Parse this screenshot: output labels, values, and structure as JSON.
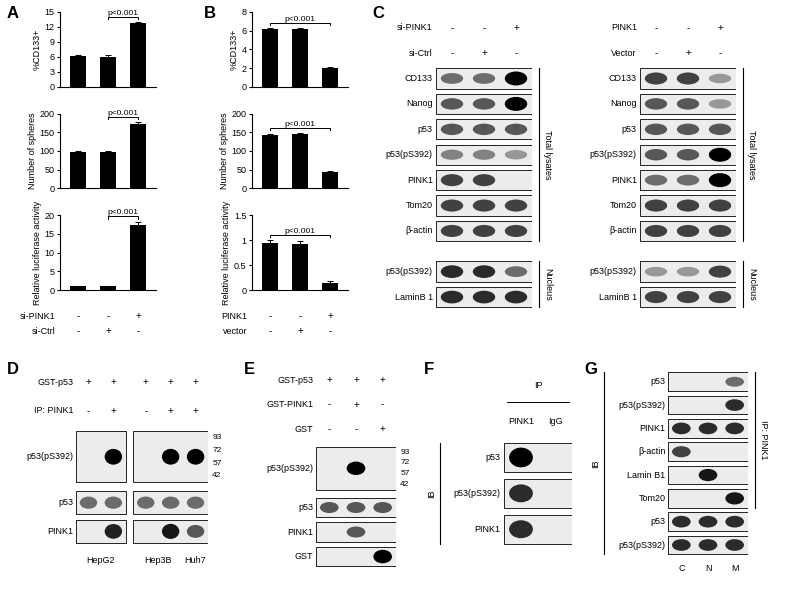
{
  "chart_data": [
    {
      "panel": "A",
      "type": "bar",
      "ylabel": "%CD133+",
      "categories": [
        null,
        null,
        null
      ],
      "values": [
        6.2,
        6.0,
        12.7
      ],
      "errors": [
        0.2,
        0.3,
        0.3
      ],
      "color": "#000000",
      "ylim": [
        0,
        15
      ],
      "yticks": [
        0,
        3,
        6,
        9,
        12,
        15
      ],
      "grid": false,
      "annotations": [
        {
          "text": "p<0.001",
          "bars": [
            1,
            2
          ]
        }
      ]
    },
    {
      "panel": "A",
      "type": "bar",
      "ylabel": "Number of spheres",
      "categories": [
        null,
        null,
        null
      ],
      "values": [
        97,
        98,
        173
      ],
      "errors": [
        3,
        3,
        5
      ],
      "color": "#000000",
      "ylim": [
        0,
        200
      ],
      "yticks": [
        0,
        50,
        100,
        150,
        200
      ],
      "grid": false,
      "annotations": [
        {
          "text": "p<0.001",
          "bars": [
            1,
            2
          ]
        }
      ]
    },
    {
      "panel": "A",
      "type": "bar",
      "ylabel": "Relative luciferase activity",
      "categories": [
        null,
        null,
        null
      ],
      "values": [
        1.0,
        1.0,
        17.5
      ],
      "errors": [
        0.1,
        0.1,
        0.8
      ],
      "color": "#000000",
      "ylim": [
        0,
        20
      ],
      "yticks": [
        0,
        5,
        10,
        15,
        20
      ],
      "grid": false,
      "annotations": [
        {
          "text": "p<0.001",
          "bars": [
            1,
            2
          ]
        }
      ],
      "conditions": [
        {
          "label": "si-PINK1",
          "marks": [
            "-",
            "-",
            "+"
          ]
        },
        {
          "label": "si-Ctrl",
          "marks": [
            "-",
            "+",
            "-"
          ]
        }
      ]
    },
    {
      "panel": "B",
      "type": "bar",
      "ylabel": "%CD133+",
      "categories": [
        null,
        null,
        null
      ],
      "values": [
        6.2,
        6.2,
        2.0
      ],
      "errors": [
        0.1,
        0.1,
        0.1
      ],
      "color": "#000000",
      "ylim": [
        0,
        8
      ],
      "yticks": [
        0,
        2,
        4,
        6,
        8
      ],
      "grid": false,
      "annotations": [
        {
          "text": "p<0.001",
          "bars": [
            0,
            2
          ]
        }
      ]
    },
    {
      "panel": "B",
      "type": "bar",
      "ylabel": "Number of spheres",
      "categories": [
        null,
        null,
        null
      ],
      "values": [
        142,
        145,
        43
      ],
      "errors": [
        3,
        3,
        4
      ],
      "color": "#000000",
      "ylim": [
        0,
        200
      ],
      "yticks": [
        0,
        50,
        100,
        150,
        200
      ],
      "grid": false,
      "annotations": [
        {
          "text": "p<0.001",
          "bars": [
            0,
            2
          ]
        }
      ]
    },
    {
      "panel": "B",
      "type": "bar",
      "ylabel": "Relative luciferase activity",
      "categories": [
        null,
        null,
        null
      ],
      "values": [
        0.95,
        0.93,
        0.15
      ],
      "errors": [
        0.05,
        0.05,
        0.03
      ],
      "color": "#000000",
      "ylim": [
        0,
        1.5
      ],
      "yticks": [
        0,
        0.5,
        1,
        1.5
      ],
      "grid": false,
      "annotations": [
        {
          "text": "p<0.001",
          "bars": [
            0,
            2
          ]
        }
      ],
      "conditions": [
        {
          "label": "PINK1",
          "marks": [
            "-",
            "-",
            "+"
          ]
        },
        {
          "label": "vector",
          "marks": [
            "-",
            "+",
            "-"
          ]
        }
      ]
    }
  ],
  "blots": [
    {
      "panel": "C",
      "headers": [
        {
          "label": "si-PINK1",
          "marks": [
            "-",
            "-",
            "+"
          ]
        },
        {
          "label": "si-Ctrl",
          "marks": [
            "-",
            "+",
            "-"
          ]
        }
      ],
      "rows": [
        {
          "label": "CD133",
          "intensity": [
            0.5,
            0.5,
            1.0
          ]
        },
        {
          "label": "Nanog",
          "intensity": [
            0.6,
            0.6,
            1.0
          ]
        },
        {
          "label": "p53",
          "intensity": [
            0.6,
            0.6,
            0.6
          ]
        },
        {
          "label": "p53(pS392)",
          "intensity": [
            0.4,
            0.4,
            0.3
          ]
        },
        {
          "label": "PINK1",
          "intensity": [
            0.7,
            0.7,
            0
          ]
        },
        {
          "label": "Tom20",
          "intensity": [
            0.7,
            0.7,
            0.7
          ]
        },
        {
          "label": "β-actin",
          "intensity": [
            0.7,
            0.7,
            0.7
          ]
        },
        {
          "label": "p53(pS392)",
          "intensity": [
            0.8,
            0.8,
            0.5
          ]
        },
        {
          "label": "LaminB 1",
          "intensity": [
            0.8,
            0.8,
            0.8
          ]
        }
      ],
      "brackets": [
        {
          "label": "Total lysates",
          "rows": [
            0,
            6
          ]
        },
        {
          "label": "Nucleus",
          "rows": [
            7,
            8
          ]
        }
      ]
    },
    {
      "panel": "C",
      "headers": [
        {
          "label": "PINK1",
          "marks": [
            "-",
            "-",
            "+"
          ]
        },
        {
          "label": "Vector",
          "marks": [
            "-",
            "+",
            "-"
          ]
        }
      ],
      "rows": [
        {
          "label": "CD133",
          "intensity": [
            0.7,
            0.7,
            0.3
          ]
        },
        {
          "label": "Nanog",
          "intensity": [
            0.6,
            0.6,
            0.3
          ]
        },
        {
          "label": "p53",
          "intensity": [
            0.6,
            0.6,
            0.6
          ]
        },
        {
          "label": "p53(pS392)",
          "intensity": [
            0.6,
            0.6,
            1.0
          ]
        },
        {
          "label": "PINK1",
          "intensity": [
            0.5,
            0.5,
            1.0
          ]
        },
        {
          "label": "Tom20",
          "intensity": [
            0.7,
            0.7,
            0.7
          ]
        },
        {
          "label": "β-actin",
          "intensity": [
            0.7,
            0.7,
            0.7
          ]
        },
        {
          "label": "p53(pS392)",
          "intensity": [
            0.3,
            0.3,
            0.7
          ]
        },
        {
          "label": "LaminB 1",
          "intensity": [
            0.7,
            0.7,
            0.7
          ]
        }
      ],
      "brackets": [
        {
          "label": "Total lysates",
          "rows": [
            0,
            6
          ]
        },
        {
          "label": "Nucleus",
          "rows": [
            7,
            8
          ]
        }
      ]
    },
    {
      "panel": "D",
      "headers": [
        {
          "label": "GST-p53",
          "marks": [
            "+",
            "+",
            "+",
            "+",
            "+"
          ]
        },
        {
          "label": "IP: PINK1",
          "marks": [
            "-",
            "+",
            "-",
            "+",
            "+"
          ]
        }
      ],
      "rows": [
        {
          "label": "p53(pS392)",
          "intensity": [
            0,
            1.0,
            0,
            1.0,
            1.0
          ]
        },
        {
          "label": "p53",
          "intensity": [
            0.5,
            0.5,
            0.5,
            0.5,
            0.5
          ]
        },
        {
          "label": "PINK1",
          "intensity": [
            0,
            0.85,
            0,
            0.9,
            0.6
          ]
        }
      ],
      "markers": [
        93,
        72,
        57,
        42
      ],
      "lane_groups": [
        {
          "label": "HepG2",
          "lanes": [
            0,
            1
          ]
        },
        {
          "label": "Hep3B",
          "lanes": [
            2,
            3
          ]
        },
        {
          "label": "Huh7",
          "lanes": [
            4
          ]
        }
      ]
    },
    {
      "panel": "E",
      "headers": [
        {
          "label": "GST-p53",
          "marks": [
            "+",
            "+",
            "+"
          ]
        },
        {
          "label": "GST-PINK1",
          "marks": [
            "-",
            "+",
            "-"
          ]
        },
        {
          "label": "GST",
          "marks": [
            "-",
            "-",
            "+"
          ]
        }
      ],
      "rows": [
        {
          "label": "p53(pS392)",
          "intensity": [
            0,
            1.0,
            0
          ]
        },
        {
          "label": "p53",
          "intensity": [
            0.6,
            0.6,
            0.6
          ]
        },
        {
          "label": "PINK1",
          "intensity": [
            0,
            0.6,
            0
          ]
        },
        {
          "label": "GST",
          "intensity": [
            0,
            0,
            1.0
          ]
        }
      ],
      "markers": [
        93,
        72,
        57,
        42
      ]
    },
    {
      "panel": "F",
      "header_title": "IP",
      "headers": [
        {
          "marks": [
            "PINK1",
            "IgG"
          ]
        }
      ],
      "rows": [
        {
          "label": "p53",
          "intensity": [
            1.0,
            0
          ]
        },
        {
          "label": "p53(pS392)",
          "intensity": [
            0.8,
            0
          ]
        },
        {
          "label": "PINK1",
          "intensity": [
            0.8,
            0
          ]
        }
      ],
      "brackets": [
        {
          "label": "IB",
          "rows": [
            0,
            2
          ]
        }
      ]
    },
    {
      "panel": "G",
      "headers": [],
      "rows": [
        {
          "label": "p53",
          "intensity": [
            0,
            0,
            0.5
          ]
        },
        {
          "label": "p53(pS392)",
          "intensity": [
            0,
            0,
            0.8
          ]
        },
        {
          "label": "PINK1",
          "intensity": [
            0.8,
            0.8,
            0.8
          ]
        },
        {
          "label": "β-actin",
          "intensity": [
            0.7,
            0,
            0
          ]
        },
        {
          "label": "Lamin B1",
          "intensity": [
            0,
            0.9,
            0
          ]
        },
        {
          "label": "Tom20",
          "intensity": [
            0,
            0,
            0.9
          ]
        },
        {
          "label": "p53",
          "intensity": [
            0.8,
            0.8,
            0.8
          ]
        },
        {
          "label": "p53(pS392)",
          "intensity": [
            0.8,
            0.8,
            0.8
          ]
        }
      ],
      "brackets": [
        {
          "label": "IB",
          "rows": [
            0,
            7
          ]
        },
        {
          "label": "IP: PINK1",
          "rows": [
            0,
            5
          ]
        }
      ],
      "lane_labels": [
        "C",
        "N",
        "M"
      ]
    }
  ]
}
